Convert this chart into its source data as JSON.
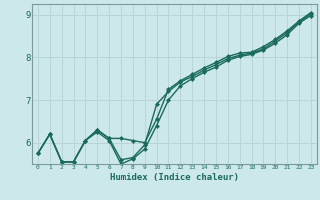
{
  "xlabel": "Humidex (Indice chaleur)",
  "bg_color": "#cde8ea",
  "grid_color": "#b8d4d6",
  "line_color": "#1a6b5a",
  "markersize": 2.5,
  "linewidth": 1.0,
  "xlim": [
    -0.5,
    23.5
  ],
  "ylim": [
    5.5,
    9.25
  ],
  "yticks": [
    6,
    7,
    8,
    9
  ],
  "xticks": [
    0,
    1,
    2,
    3,
    4,
    5,
    6,
    7,
    8,
    9,
    10,
    11,
    12,
    13,
    14,
    15,
    16,
    17,
    18,
    19,
    20,
    21,
    22,
    23
  ],
  "line1_x": [
    0,
    1,
    2,
    3,
    4,
    5,
    6,
    7,
    8,
    9,
    10,
    11,
    12,
    13,
    14,
    15,
    16,
    17,
    18,
    19,
    20,
    21,
    22,
    23
  ],
  "line1_y": [
    5.75,
    6.2,
    5.55,
    5.55,
    6.05,
    6.3,
    6.1,
    6.1,
    6.05,
    6.0,
    6.55,
    7.25,
    7.45,
    7.6,
    7.75,
    7.88,
    8.02,
    8.1,
    8.12,
    8.25,
    8.42,
    8.62,
    8.85,
    9.05
  ],
  "line2_x": [
    0,
    1,
    2,
    3,
    4,
    5,
    6,
    7,
    8,
    9,
    10,
    11,
    12,
    13,
    14,
    15,
    16,
    17,
    18,
    19,
    20,
    21,
    22,
    23
  ],
  "line2_y": [
    5.75,
    6.2,
    5.55,
    5.55,
    6.05,
    6.3,
    6.1,
    5.6,
    5.65,
    5.95,
    6.9,
    7.2,
    7.42,
    7.55,
    7.7,
    7.83,
    7.97,
    8.05,
    8.1,
    8.2,
    8.38,
    8.58,
    8.83,
    9.02
  ],
  "line3_x": [
    0,
    1,
    2,
    3,
    4,
    5,
    6,
    7,
    8,
    9,
    10,
    11,
    12,
    13,
    14,
    15,
    16,
    17,
    18,
    19,
    20,
    21,
    22,
    23
  ],
  "line3_y": [
    5.75,
    6.2,
    5.55,
    5.55,
    6.05,
    6.25,
    6.05,
    5.5,
    5.62,
    5.85,
    6.4,
    7.0,
    7.33,
    7.5,
    7.65,
    7.77,
    7.93,
    8.02,
    8.07,
    8.17,
    8.33,
    8.53,
    8.8,
    8.98
  ]
}
